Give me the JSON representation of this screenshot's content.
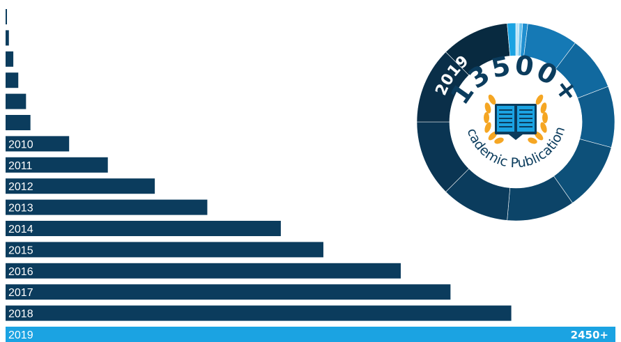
{
  "chart_data": {
    "type": "bar",
    "orientation": "horizontal",
    "categories": [
      "",
      "",
      "",
      "",
      "",
      "",
      "2010",
      "2011",
      "2012",
      "2013",
      "2014",
      "2015",
      "2016",
      "2017",
      "2018",
      "2019"
    ],
    "values": [
      5,
      60,
      140,
      230,
      370,
      450,
      1150,
      1850,
      2700,
      3650,
      4980,
      5750,
      7150,
      8050,
      9150,
      11000
    ],
    "highlight_category": "2019",
    "highlight_label": "2450+",
    "title": "",
    "xlabel": "",
    "ylabel": "",
    "grid": false
  },
  "colors": {
    "bar": "#0b3c5d",
    "highlight": "#1ba3e2",
    "text": "#ffffff"
  },
  "badge": {
    "year": "2019",
    "count": "13500+",
    "caption": "Academic Publications",
    "icon": "book-laurel-icon",
    "ring_colors": [
      "#bde4f7",
      "#6cc4ef",
      "#1f8fd0",
      "#1579b5",
      "#11699f",
      "#0f5c8c",
      "#0d5079",
      "#0c4468",
      "#0b3c5d",
      "#0a3553",
      "#0a2f49",
      "#082a40",
      "#1ba3e2"
    ],
    "colors": {
      "dark": "#0b3c5d",
      "light": "#1ba3e2",
      "gold": "#f5a623"
    }
  }
}
